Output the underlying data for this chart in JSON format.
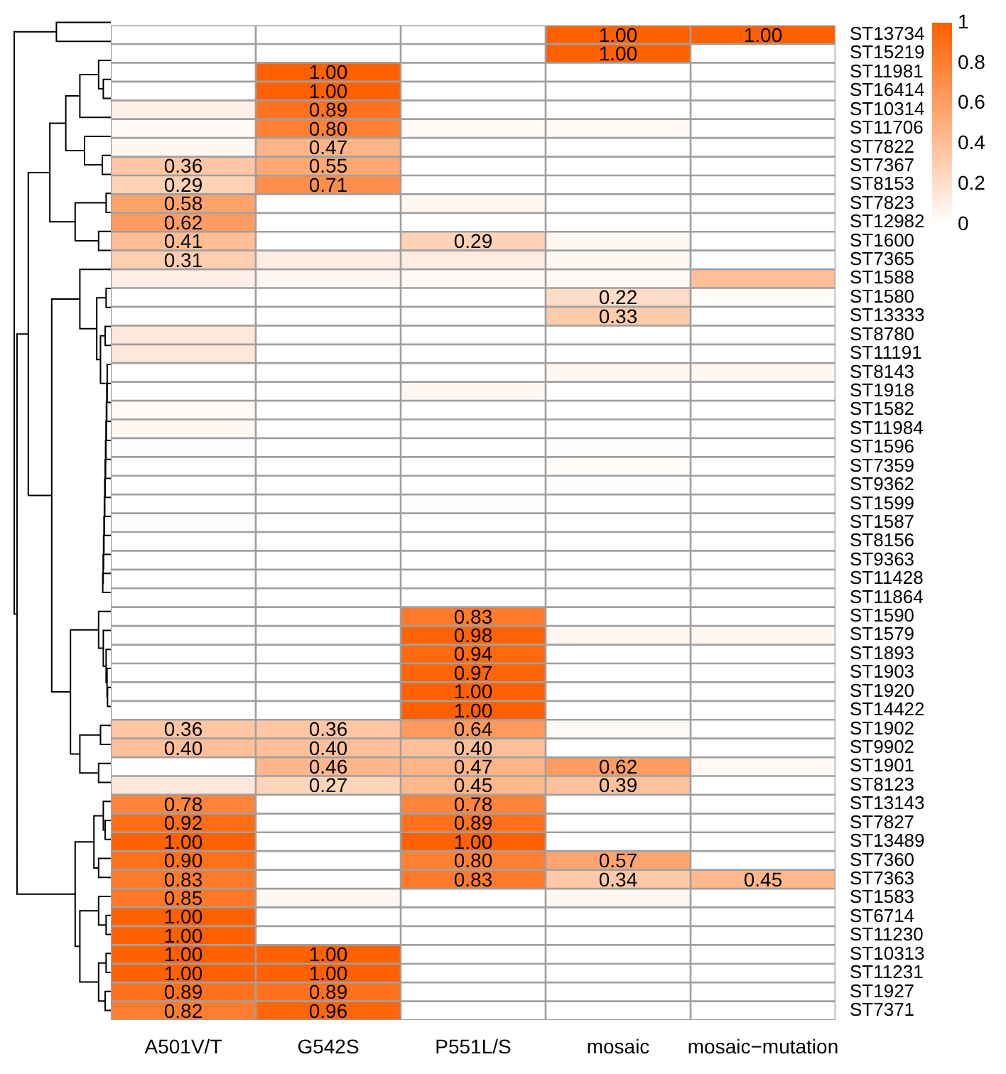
{
  "chart_data": {
    "type": "heatmap",
    "categories": [
      "A501V/T",
      "G542S",
      "P551L/S",
      "mosaic",
      "mosaic−mutation"
    ],
    "y_categories": [
      "ST13734",
      "ST15219",
      "ST11981",
      "ST16414",
      "ST10314",
      "ST11706",
      "ST7822",
      "ST7367",
      "ST8153",
      "ST7823",
      "ST12982",
      "ST1600",
      "ST7365",
      "ST1588",
      "ST1580",
      "ST13333",
      "ST8780",
      "ST11191",
      "ST8143",
      "ST1918",
      "ST1582",
      "ST11984",
      "ST1596",
      "ST7359",
      "ST9362",
      "ST1599",
      "ST1587",
      "ST8156",
      "ST9363",
      "ST11428",
      "ST11864",
      "ST1590",
      "ST1579",
      "ST1893",
      "ST1903",
      "ST1920",
      "ST14422",
      "ST1902",
      "ST9902",
      "ST1901",
      "ST8123",
      "ST13143",
      "ST7827",
      "ST13489",
      "ST7360",
      "ST7363",
      "ST1583",
      "ST6714",
      "ST11230",
      "ST10313",
      "ST11231",
      "ST1927",
      "ST7371"
    ],
    "cells": [
      [
        0,
        0,
        0,
        1.0,
        1.0
      ],
      [
        0,
        0,
        0,
        1.0,
        0
      ],
      [
        0,
        1.0,
        0,
        0,
        0
      ],
      [
        0,
        1.0,
        0,
        0,
        0
      ],
      [
        0.1,
        0.89,
        0,
        0,
        0
      ],
      [
        0.03,
        0.8,
        0.03,
        0.03,
        0
      ],
      [
        0.05,
        0.47,
        0,
        0,
        0
      ],
      [
        0.36,
        0.55,
        0,
        0,
        0
      ],
      [
        0.29,
        0.71,
        0,
        0,
        0
      ],
      [
        0.58,
        0,
        0.05,
        0,
        0
      ],
      [
        0.62,
        0,
        0,
        0,
        0
      ],
      [
        0.41,
        0,
        0.29,
        0.05,
        0
      ],
      [
        0.31,
        0.12,
        0.12,
        0.05,
        0
      ],
      [
        0.1,
        0.05,
        0.03,
        0.03,
        0.4
      ],
      [
        0,
        0,
        0,
        0.22,
        0.02
      ],
      [
        0,
        0,
        0,
        0.33,
        0
      ],
      [
        0.15,
        0,
        0,
        0,
        0
      ],
      [
        0.15,
        0,
        0,
        0,
        0
      ],
      [
        0,
        0,
        0,
        0.05,
        0.05
      ],
      [
        0,
        0,
        0.05,
        0,
        0
      ],
      [
        0.03,
        0,
        0,
        0,
        0
      ],
      [
        0.05,
        0,
        0,
        0,
        0
      ],
      [
        0.01,
        0,
        0,
        0.01,
        0
      ],
      [
        0,
        0,
        0,
        0.02,
        0
      ],
      [
        0,
        0,
        0,
        0.01,
        0
      ],
      [
        0,
        0,
        0.01,
        0,
        0
      ],
      [
        0.01,
        0,
        0,
        0,
        0
      ],
      [
        0,
        0,
        0,
        0,
        0
      ],
      [
        0,
        0,
        0,
        0,
        0
      ],
      [
        0,
        0,
        0,
        0,
        0
      ],
      [
        0,
        0,
        0,
        0,
        0
      ],
      [
        0,
        0,
        0.83,
        0,
        0
      ],
      [
        0,
        0,
        0.98,
        0.05,
        0.05
      ],
      [
        0,
        0,
        0.94,
        0,
        0
      ],
      [
        0,
        0,
        0.97,
        0,
        0
      ],
      [
        0,
        0,
        1.0,
        0,
        0
      ],
      [
        0,
        0,
        1.0,
        0,
        0
      ],
      [
        0.36,
        0.36,
        0.64,
        0.04,
        0
      ],
      [
        0.4,
        0.4,
        0.4,
        0,
        0
      ],
      [
        0,
        0.46,
        0.47,
        0.62,
        0.04
      ],
      [
        0.15,
        0.27,
        0.45,
        0.39,
        0
      ],
      [
        0.78,
        0,
        0.78,
        0,
        0
      ],
      [
        0.92,
        0,
        0.89,
        0,
        0
      ],
      [
        1.0,
        0,
        1.0,
        0,
        0
      ],
      [
        0.9,
        0,
        0.8,
        0.57,
        0
      ],
      [
        0.83,
        0,
        0.83,
        0.34,
        0.45
      ],
      [
        0.85,
        0.05,
        0,
        0.05,
        0
      ],
      [
        1.0,
        0,
        0,
        0,
        0
      ],
      [
        1.0,
        0,
        0,
        0,
        0
      ],
      [
        1.0,
        1.0,
        0,
        0,
        0
      ],
      [
        1.0,
        1.0,
        0,
        0,
        0
      ],
      [
        0.89,
        0.89,
        0,
        0,
        0
      ],
      [
        0.82,
        0.96,
        0,
        0,
        0
      ]
    ],
    "cell_labels": [
      [
        null,
        null,
        null,
        "1.00",
        "1.00"
      ],
      [
        null,
        null,
        null,
        "1.00",
        null
      ],
      [
        null,
        "1.00",
        null,
        null,
        null
      ],
      [
        null,
        "1.00",
        null,
        null,
        null
      ],
      [
        null,
        "0.89",
        null,
        null,
        null
      ],
      [
        null,
        "0.80",
        null,
        null,
        null
      ],
      [
        null,
        "0.47",
        null,
        null,
        null
      ],
      [
        "0.36",
        "0.55",
        null,
        null,
        null
      ],
      [
        "0.29",
        "0.71",
        null,
        null,
        null
      ],
      [
        "0.58",
        null,
        null,
        null,
        null
      ],
      [
        "0.62",
        null,
        null,
        null,
        null
      ],
      [
        "0.41",
        null,
        "0.29",
        null,
        null
      ],
      [
        "0.31",
        null,
        null,
        null,
        null
      ],
      [
        null,
        null,
        null,
        null,
        null
      ],
      [
        null,
        null,
        null,
        "0.22",
        null
      ],
      [
        null,
        null,
        null,
        "0.33",
        null
      ],
      [
        null,
        null,
        null,
        null,
        null
      ],
      [
        null,
        null,
        null,
        null,
        null
      ],
      [
        null,
        null,
        null,
        null,
        null
      ],
      [
        null,
        null,
        null,
        null,
        null
      ],
      [
        null,
        null,
        null,
        null,
        null
      ],
      [
        null,
        null,
        null,
        null,
        null
      ],
      [
        null,
        null,
        null,
        null,
        null
      ],
      [
        null,
        null,
        null,
        null,
        null
      ],
      [
        null,
        null,
        null,
        null,
        null
      ],
      [
        null,
        null,
        null,
        null,
        null
      ],
      [
        null,
        null,
        null,
        null,
        null
      ],
      [
        null,
        null,
        null,
        null,
        null
      ],
      [
        null,
        null,
        null,
        null,
        null
      ],
      [
        null,
        null,
        null,
        null,
        null
      ],
      [
        null,
        null,
        null,
        null,
        null
      ],
      [
        null,
        null,
        "0.83",
        null,
        null
      ],
      [
        null,
        null,
        "0.98",
        null,
        null
      ],
      [
        null,
        null,
        "0.94",
        null,
        null
      ],
      [
        null,
        null,
        "0.97",
        null,
        null
      ],
      [
        null,
        null,
        "1.00",
        null,
        null
      ],
      [
        null,
        null,
        "1.00",
        null,
        null
      ],
      [
        "0.36",
        "0.36",
        "0.64",
        null,
        null
      ],
      [
        "0.40",
        "0.40",
        "0.40",
        null,
        null
      ],
      [
        null,
        "0.46",
        "0.47",
        "0.62",
        null
      ],
      [
        null,
        "0.27",
        "0.45",
        "0.39",
        null
      ],
      [
        "0.78",
        null,
        "0.78",
        null,
        null
      ],
      [
        "0.92",
        null,
        "0.89",
        null,
        null
      ],
      [
        "1.00",
        null,
        "1.00",
        null,
        null
      ],
      [
        "0.90",
        null,
        "0.80",
        "0.57",
        null
      ],
      [
        "0.83",
        null,
        "0.83",
        "0.34",
        "0.45"
      ],
      [
        "0.85",
        null,
        null,
        null,
        null
      ],
      [
        "1.00",
        null,
        null,
        null,
        null
      ],
      [
        "1.00",
        null,
        null,
        null,
        null
      ],
      [
        "1.00",
        "1.00",
        null,
        null,
        null
      ],
      [
        "1.00",
        "1.00",
        null,
        null,
        null
      ],
      [
        "0.89",
        "0.89",
        null,
        null,
        null
      ],
      [
        "0.82",
        "0.96",
        null,
        null,
        null
      ]
    ],
    "clim": [
      0,
      1
    ],
    "cticks": [
      0,
      0.2,
      0.4,
      0.6,
      0.8,
      1
    ]
  }
}
